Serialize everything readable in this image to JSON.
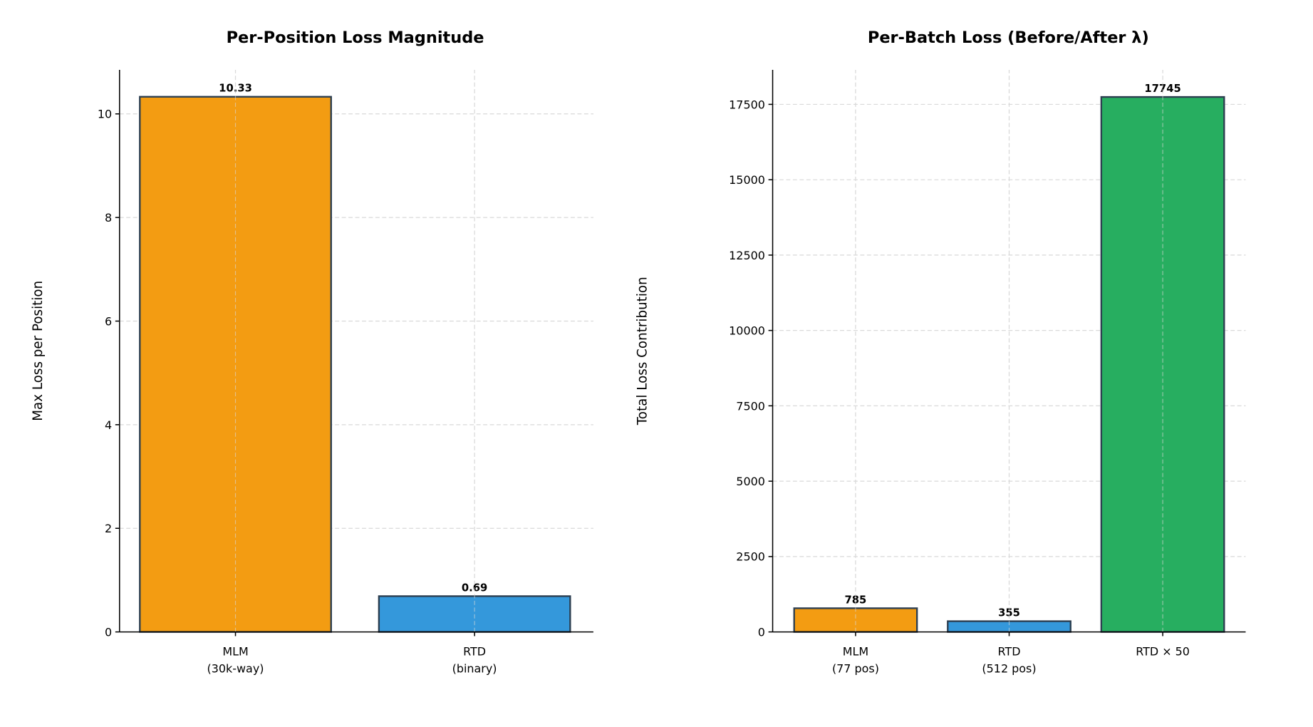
{
  "chart_data": [
    {
      "type": "bar",
      "title": "Per-Position Loss Magnitude",
      "xlabel": "",
      "ylabel": "Max Loss per Position",
      "categories": [
        "MLM\n(30k-way)",
        "RTD\n(binary)"
      ],
      "values": [
        10.33,
        0.69
      ],
      "data_labels": [
        "10.33",
        "0.69"
      ],
      "colors": [
        "#f39c12",
        "#3498db"
      ],
      "edge_color": "#2c3e50",
      "ylim": [
        0,
        10.85
      ],
      "yticks": [
        0,
        2,
        4,
        6,
        8,
        10
      ],
      "ytick_labels": [
        "0",
        "2",
        "4",
        "6",
        "8",
        "10"
      ],
      "grid": true
    },
    {
      "type": "bar",
      "title": "Per-Batch Loss (Before/After λ)",
      "xlabel": "",
      "ylabel": "Total Loss Contribution",
      "categories": [
        "MLM\n(77 pos)",
        "RTD\n(512 pos)",
        "RTD × 50"
      ],
      "values": [
        785,
        355,
        17745
      ],
      "data_labels": [
        "785",
        "355",
        "17745"
      ],
      "colors": [
        "#f39c12",
        "#3498db",
        "#27ae60"
      ],
      "edge_color": "#2c3e50",
      "ylim": [
        0,
        18645
      ],
      "yticks": [
        0,
        2500,
        5000,
        7500,
        10000,
        12500,
        15000,
        17500
      ],
      "ytick_labels": [
        "0",
        "2500",
        "5000",
        "7500",
        "10000",
        "12500",
        "15000",
        "17500"
      ],
      "grid": true
    }
  ]
}
